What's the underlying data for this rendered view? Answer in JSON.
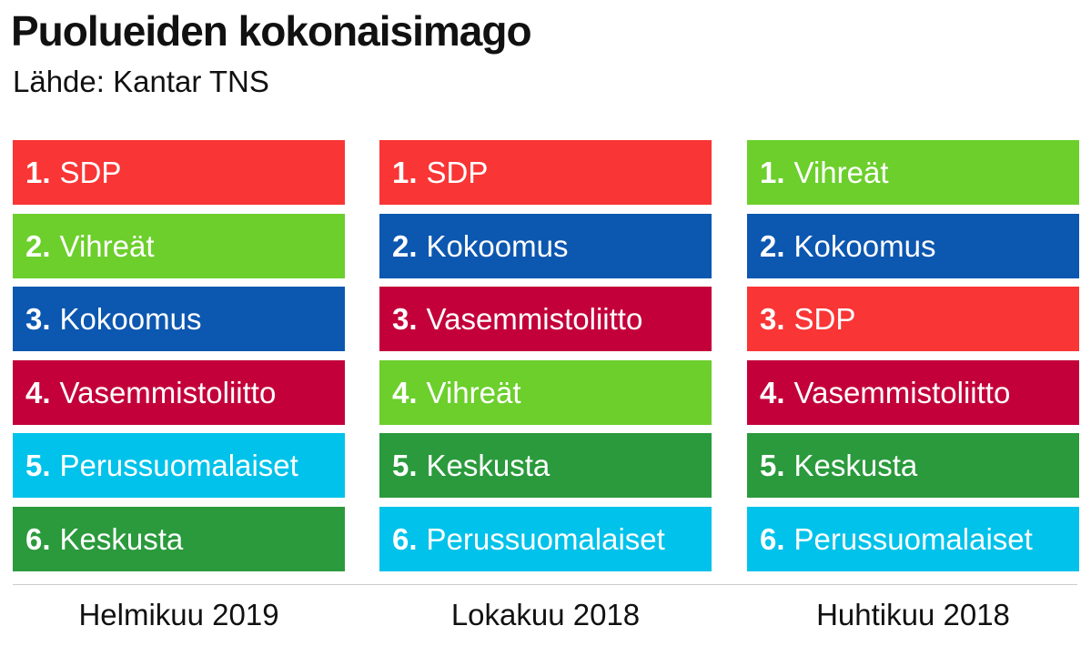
{
  "chart_data": {
    "type": "table",
    "title": "Puolueiden kokonaisimago",
    "subtitle": "Lähde: Kantar TNS",
    "colors": {
      "SDP": "#f93535",
      "Vihreät": "#6ccf2c",
      "Kokoomus": "#0c57b0",
      "Vasemmistoliitto": "#c3003a",
      "Perussuomalaiset": "#00c2ea",
      "Keskusta": "#2a9a3c"
    },
    "columns": [
      {
        "label": "Helmikuu 2019",
        "items": [
          {
            "rank": "1.",
            "party": "SDP"
          },
          {
            "rank": "2.",
            "party": "Vihreät"
          },
          {
            "rank": "3.",
            "party": "Kokoomus"
          },
          {
            "rank": "4.",
            "party": "Vasemmistoliitto"
          },
          {
            "rank": "5.",
            "party": "Perussuomalaiset"
          },
          {
            "rank": "6.",
            "party": "Keskusta"
          }
        ]
      },
      {
        "label": "Lokakuu 2018",
        "items": [
          {
            "rank": "1.",
            "party": "SDP"
          },
          {
            "rank": "2.",
            "party": "Kokoomus"
          },
          {
            "rank": "3.",
            "party": "Vasemmistoliitto"
          },
          {
            "rank": "4.",
            "party": "Vihreät"
          },
          {
            "rank": "5.",
            "party": "Keskusta"
          },
          {
            "rank": "6.",
            "party": "Perussuomalaiset"
          }
        ]
      },
      {
        "label": "Huhtikuu 2018",
        "items": [
          {
            "rank": "1.",
            "party": "Vihreät"
          },
          {
            "rank": "2.",
            "party": "Kokoomus"
          },
          {
            "rank": "3.",
            "party": "SDP"
          },
          {
            "rank": "4.",
            "party": "Vasemmistoliitto"
          },
          {
            "rank": "5.",
            "party": "Keskusta"
          },
          {
            "rank": "6.",
            "party": "Perussuomalaiset"
          }
        ]
      }
    ]
  }
}
